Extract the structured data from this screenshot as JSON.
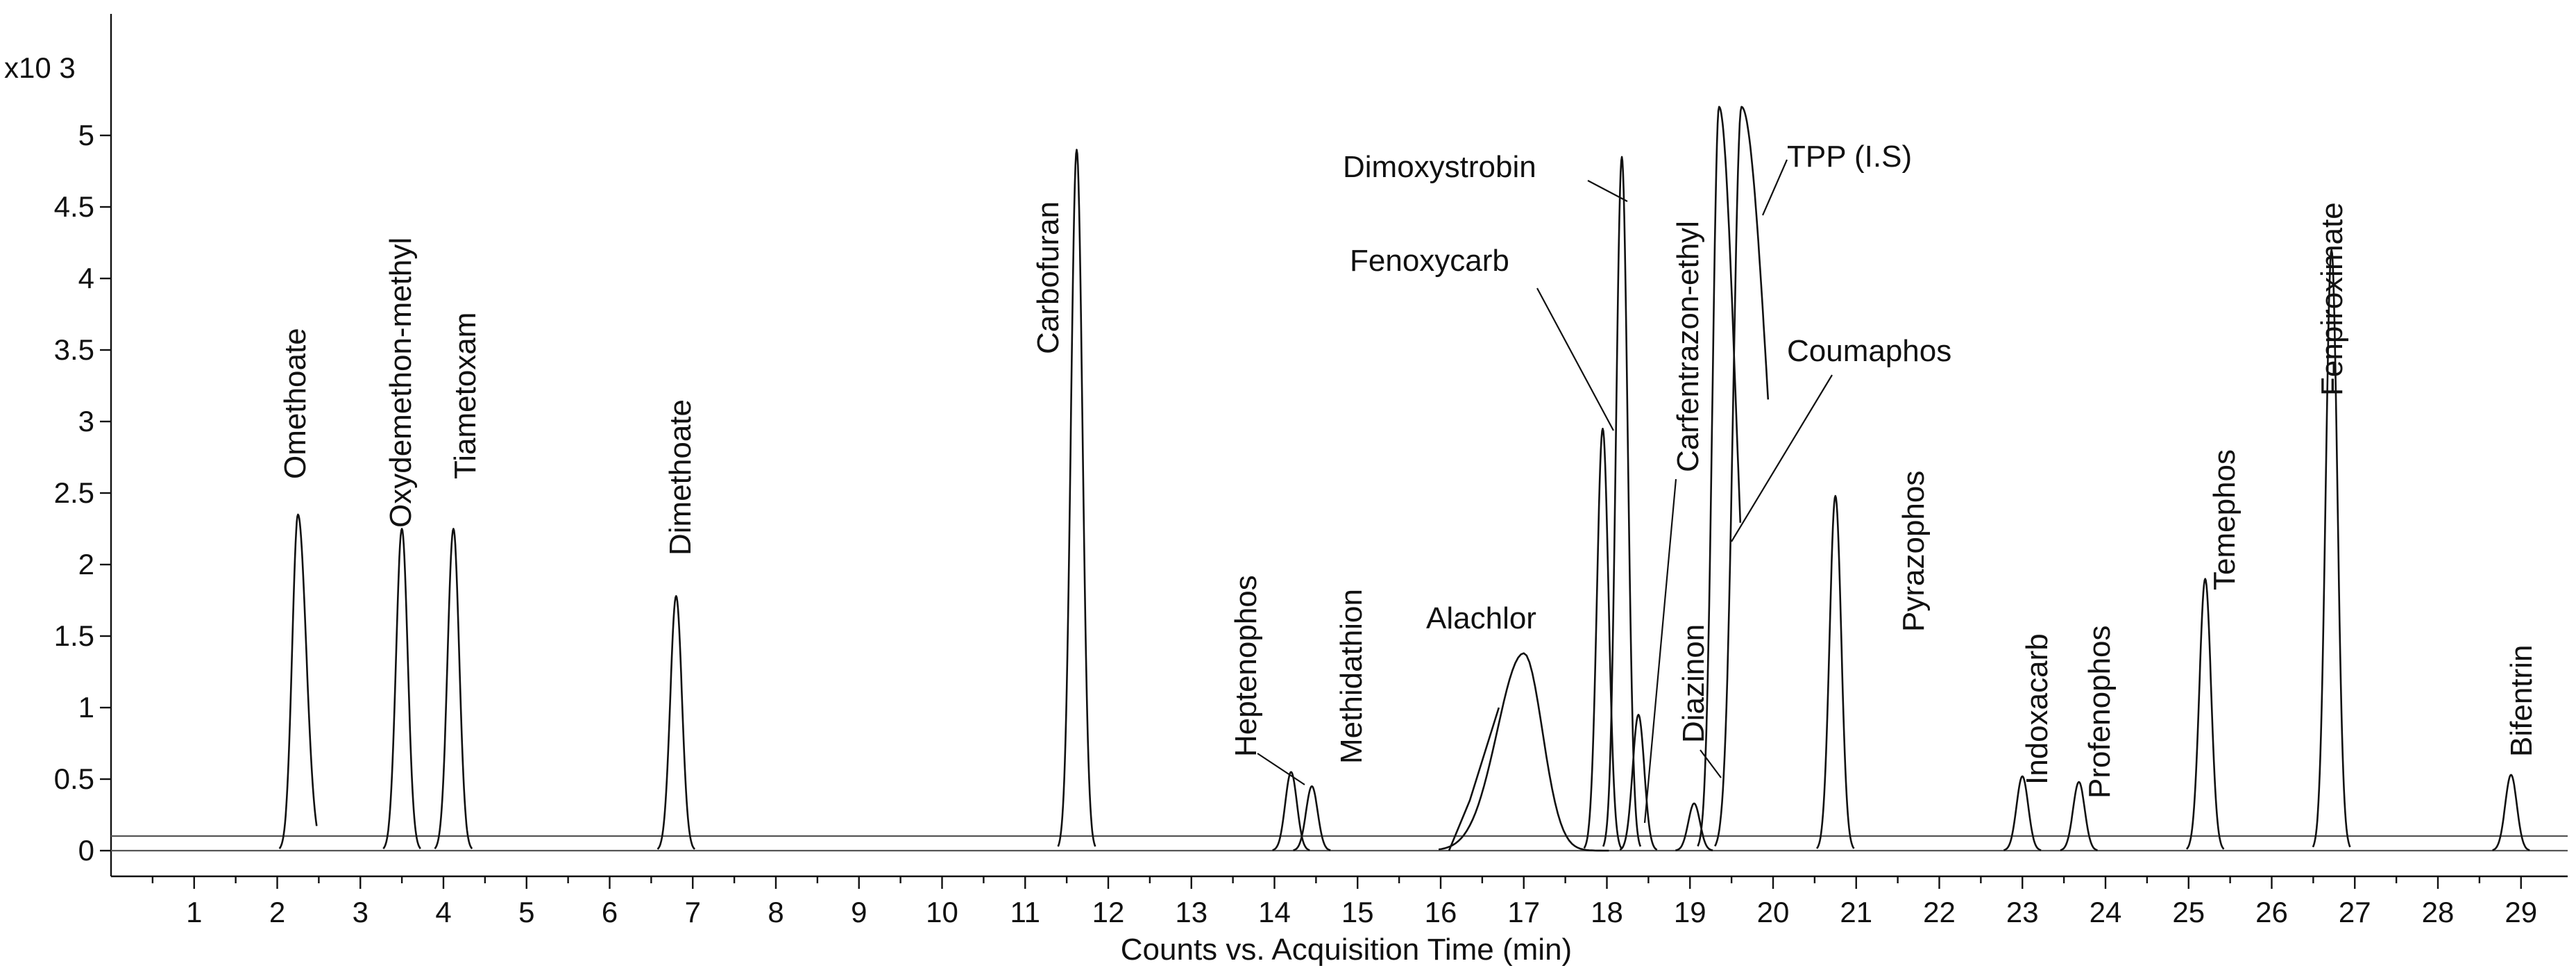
{
  "chart_data": {
    "type": "line",
    "title": "",
    "xlabel": "Counts vs. Acquisition Time (min)",
    "ylabel": "",
    "y_scale_label": "x10 3",
    "xlim": [
      0,
      29.5
    ],
    "ylim": [
      0,
      5.5
    ],
    "x_ticks": [
      1,
      2,
      3,
      4,
      5,
      6,
      7,
      8,
      9,
      10,
      11,
      12,
      13,
      14,
      15,
      16,
      17,
      18,
      19,
      20,
      21,
      22,
      23,
      24,
      25,
      26,
      27,
      28,
      29
    ],
    "y_ticks": [
      0,
      0.5,
      1,
      1.5,
      2,
      2.5,
      3,
      3.5,
      4,
      4.5,
      5
    ],
    "y_tick_labels": [
      "0",
      "0.5",
      "1",
      "1.5",
      "2",
      "2.5",
      "3",
      "3.5",
      "4",
      "4.5",
      "5"
    ],
    "grid": false,
    "legend": "none",
    "peaks": [
      {
        "name": "Omethoate",
        "rt": 2.25,
        "height": 2.35
      },
      {
        "name": "Oxydemethon-methyl",
        "rt": 3.5,
        "height": 2.25
      },
      {
        "name": "Tiametoxam",
        "rt": 4.12,
        "height": 2.25
      },
      {
        "name": "Dimethoate",
        "rt": 6.8,
        "height": 1.78
      },
      {
        "name": "Carbofuran",
        "rt": 11.62,
        "height": 4.9
      },
      {
        "name": "Heptenophos",
        "rt": 14.2,
        "height": 0.55
      },
      {
        "name": "Methidathion",
        "rt": 14.45,
        "height": 0.45
      },
      {
        "name": "Alachlor",
        "rt": 17.0,
        "height": 1.38
      },
      {
        "name": "Fenoxycarb",
        "rt": 17.95,
        "height": 2.95
      },
      {
        "name": "Dimoxystrobin",
        "rt": 18.18,
        "height": 4.85
      },
      {
        "name": "Carfentrazon-ethyl",
        "rt": 18.38,
        "height": 0.95
      },
      {
        "name": "Diazinon",
        "rt": 19.05,
        "height": 0.33
      },
      {
        "name": "Coumaphos",
        "rt": 19.35,
        "height": 5.2
      },
      {
        "name": "TPP (I.S)",
        "rt": 19.62,
        "height": 5.2
      },
      {
        "name": "Pyrazophos",
        "rt": 20.75,
        "height": 2.48
      },
      {
        "name": "Indoxacarb",
        "rt": 23.0,
        "height": 0.52
      },
      {
        "name": "Profenophos",
        "rt": 23.68,
        "height": 0.48
      },
      {
        "name": "Temephos",
        "rt": 25.2,
        "height": 1.9
      },
      {
        "name": "Fenpiroximate",
        "rt": 26.72,
        "height": 4.2
      },
      {
        "name": "Bifentrin",
        "rt": 28.88,
        "height": 0.53
      }
    ]
  }
}
